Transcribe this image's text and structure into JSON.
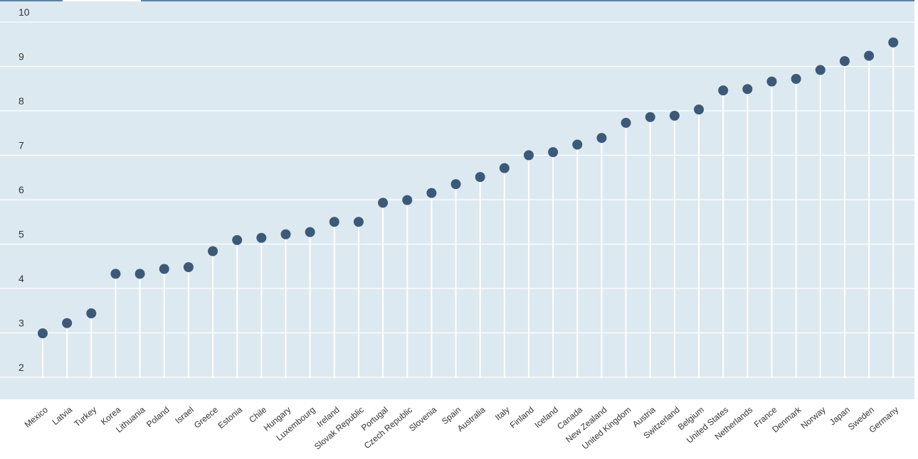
{
  "chart_data": {
    "type": "lollipop",
    "title": "",
    "xlabel": "",
    "ylabel": "",
    "ylim": [
      2,
      10
    ],
    "yticks": [
      2,
      3,
      4,
      5,
      6,
      7,
      8,
      9,
      10
    ],
    "grid": true,
    "legend": "none",
    "categories": [
      "Mexico",
      "Latvia",
      "Turkey",
      "Korea",
      "Lithuania",
      "Poland",
      "Israel",
      "Greece",
      "Estonia",
      "Chile",
      "Hungary",
      "Luxembourg",
      "Ireland",
      "Slovak Republic",
      "Portugal",
      "Czech Republic",
      "Slovenia",
      "Spain",
      "Australia",
      "Italy",
      "Finland",
      "Iceland",
      "Canada",
      "New Zealand",
      "United Kingdom",
      "Austria",
      "Switzerland",
      "Belgium",
      "United States",
      "Netherlands",
      "France",
      "Denmark",
      "Norway",
      "Japan",
      "Sweden",
      "Germany"
    ],
    "values": [
      2.99,
      3.22,
      3.44,
      4.33,
      4.33,
      4.44,
      4.48,
      4.84,
      5.09,
      5.14,
      5.22,
      5.27,
      5.5,
      5.5,
      5.93,
      5.99,
      6.15,
      6.35,
      6.51,
      6.71,
      7.0,
      7.07,
      7.24,
      7.39,
      7.73,
      7.86,
      7.89,
      8.03,
      8.46,
      8.49,
      8.66,
      8.72,
      8.92,
      9.12,
      9.24,
      9.54
    ],
    "colors": {
      "background": "#dde9f0",
      "grid": "#ffffff",
      "marker": "#3c5a78",
      "stem": "#ffffff",
      "top_line": "#2a5a80"
    }
  }
}
